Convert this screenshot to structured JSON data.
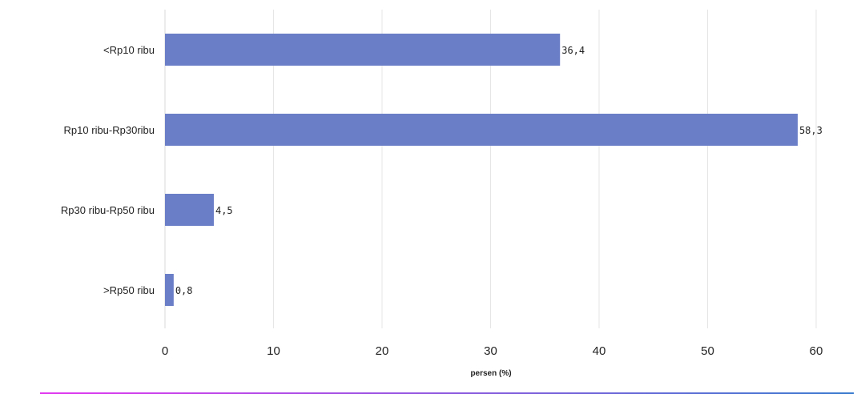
{
  "chart_data": {
    "type": "bar",
    "orientation": "horizontal",
    "categories": [
      "<Rp10 ribu",
      "Rp10 ribu-Rp30ribu",
      "Rp30 ribu-Rp50 ribu",
      ">Rp50 ribu"
    ],
    "values": [
      36.4,
      58.3,
      4.5,
      0.8
    ],
    "data_labels": [
      "36,4",
      "58,3",
      "4,5",
      "0,8"
    ],
    "xlabel": "persen (%)",
    "ylabel": "",
    "xlim": [
      0,
      60
    ],
    "xticks": [
      0,
      10,
      20,
      30,
      40,
      50,
      60
    ],
    "grid": true,
    "bar_color": "#6a7ec8",
    "footer_gradient": [
      "#e23bf0",
      "#3f7fd0"
    ]
  }
}
